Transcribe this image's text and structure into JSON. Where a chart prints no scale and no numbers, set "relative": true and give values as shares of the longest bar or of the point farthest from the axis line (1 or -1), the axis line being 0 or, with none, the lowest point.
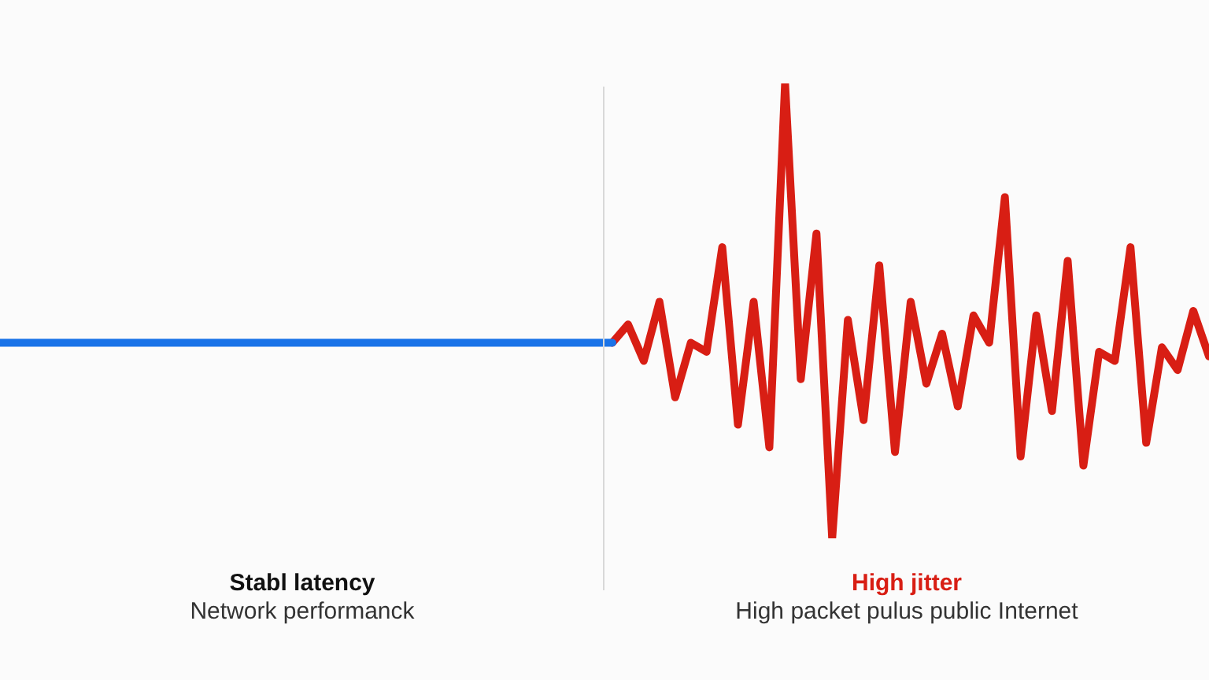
{
  "chart_data": {
    "type": "line",
    "relative": true,
    "grid": false,
    "legend": false,
    "marker": "none",
    "line_style": "solid",
    "categories": [
      null,
      null,
      null,
      null,
      null,
      null,
      null,
      null,
      null,
      null,
      null,
      null,
      null,
      null,
      null,
      null,
      null,
      null,
      null,
      null,
      null,
      null,
      null,
      null,
      null,
      null,
      null,
      null,
      null,
      null,
      null,
      null,
      null,
      null,
      null,
      null,
      null,
      null,
      null,
      null,
      null,
      null,
      null,
      null,
      null,
      null,
      null,
      null,
      null,
      null,
      null,
      null,
      null,
      null,
      null,
      null,
      null,
      null,
      null,
      null,
      null,
      null,
      null,
      null,
      null,
      null,
      null,
      null,
      null,
      null,
      null,
      null,
      null,
      null,
      null,
      null,
      null,
      null
    ],
    "series": [
      {
        "color": "#1a73e8",
        "values": [
          0.43,
          0.43,
          0.43,
          0.43,
          0.43,
          0.43,
          0.43,
          0.43,
          0.43,
          0.43,
          0.43,
          0.43,
          0.43,
          0.43,
          0.43,
          0.43,
          0.43,
          0.43,
          0.43,
          0.43,
          0.43,
          0.43,
          0.43,
          0.43,
          0.43,
          0.43,
          0.43,
          0.43,
          0.43,
          0.43,
          0.43,
          0.43,
          0.43,
          0.43,
          0.43,
          0.43,
          0.43,
          0.43,
          0.43,
          0.43,
          null,
          null,
          null,
          null,
          null,
          null,
          null,
          null,
          null,
          null,
          null,
          null,
          null,
          null,
          null,
          null,
          null,
          null,
          null,
          null,
          null,
          null,
          null,
          null,
          null,
          null,
          null,
          null,
          null,
          null,
          null,
          null,
          null,
          null,
          null,
          null,
          null,
          null
        ]
      },
      {
        "color": "#d81e14",
        "values": [
          null,
          null,
          null,
          null,
          null,
          null,
          null,
          null,
          null,
          null,
          null,
          null,
          null,
          null,
          null,
          null,
          null,
          null,
          null,
          null,
          null,
          null,
          null,
          null,
          null,
          null,
          null,
          null,
          null,
          null,
          null,
          null,
          null,
          null,
          null,
          null,
          null,
          null,
          null,
          0.43,
          0.47,
          0.39,
          0.52,
          0.31,
          0.43,
          0.41,
          0.64,
          0.25,
          0.52,
          0.2,
          1,
          0.35,
          0.67,
          0,
          0.48,
          0.26,
          0.6,
          0.19,
          0.52,
          0.34,
          0.45,
          0.29,
          0.49,
          0.43,
          0.75,
          0.18,
          0.49,
          0.28,
          0.61,
          0.16,
          0.41,
          0.39,
          0.64,
          0.21,
          0.42,
          0.37,
          0.5,
          0.4
        ]
      }
    ],
    "annotations": [
      "Stabl latency",
      "Network performanck",
      "High jitter",
      "High packet pulus public Internet"
    ]
  }
}
